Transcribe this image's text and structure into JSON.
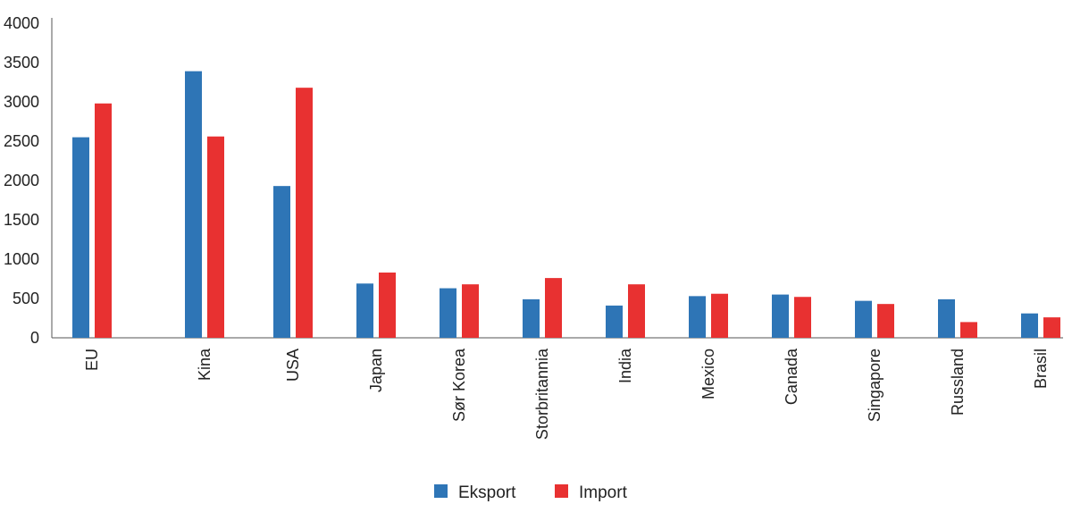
{
  "chart_data": {
    "type": "bar",
    "title": "",
    "xlabel": "",
    "ylabel": "",
    "ylim": [
      0,
      4000
    ],
    "yticks": [
      0,
      500,
      1000,
      1500,
      2000,
      2500,
      3000,
      3500,
      4000
    ],
    "grid": false,
    "legend_position": "bottom-center",
    "categories": [
      "EU",
      "Kina",
      "USA",
      "Japan",
      "Sør Korea",
      "Storbritannia",
      "India",
      "Mexico",
      "Canada",
      "Singapore",
      "Russland",
      "Brasil"
    ],
    "series": [
      {
        "name": "Eksport",
        "color": "#2e75b6",
        "values": [
          2550,
          3390,
          1930,
          690,
          630,
          490,
          410,
          530,
          550,
          470,
          490,
          310
        ]
      },
      {
        "name": "Import",
        "color": "#e83131",
        "values": [
          2980,
          2560,
          3180,
          830,
          680,
          760,
          680,
          560,
          520,
          430,
          200,
          260
        ]
      }
    ]
  }
}
